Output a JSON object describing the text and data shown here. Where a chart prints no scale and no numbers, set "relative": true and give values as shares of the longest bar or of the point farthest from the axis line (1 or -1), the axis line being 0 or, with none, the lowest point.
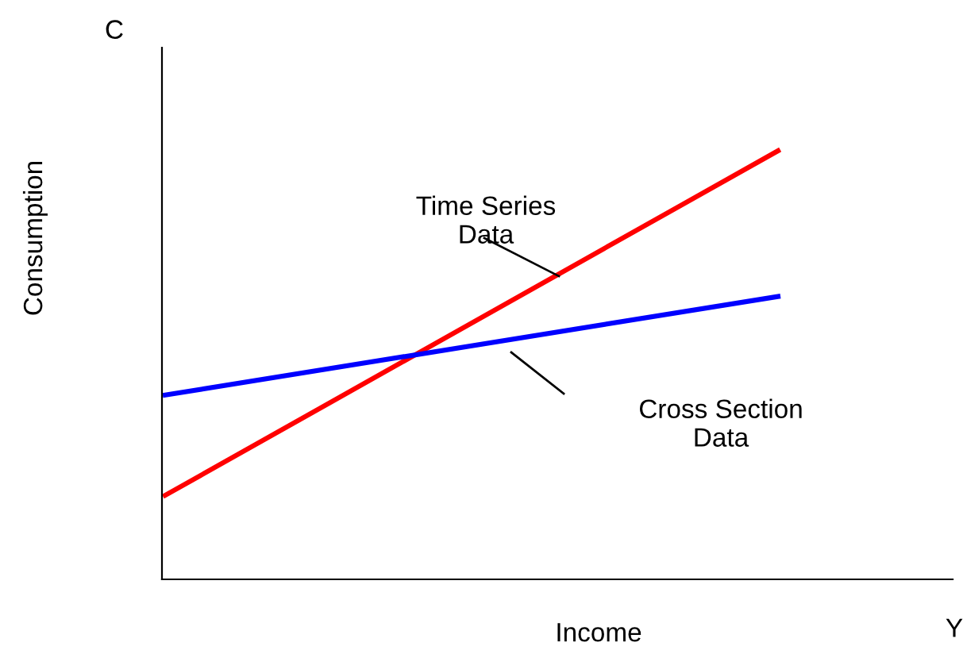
{
  "chart_data": {
    "type": "line",
    "relative": true,
    "categories": [
      null,
      null
    ],
    "xlabel": "Income",
    "ylabel": "Consumption",
    "annotations": [
      "C",
      "Y",
      "Time Series\nData",
      "Cross Section\nData"
    ],
    "series": [
      {
        "color": "#ff0000",
        "values": [
          0.196,
          1
        ]
      },
      {
        "color": "#0000ff",
        "values": [
          0.43,
          0.66
        ]
      }
    ],
    "legend": false,
    "marker": "none",
    "line_style": "solid"
  }
}
